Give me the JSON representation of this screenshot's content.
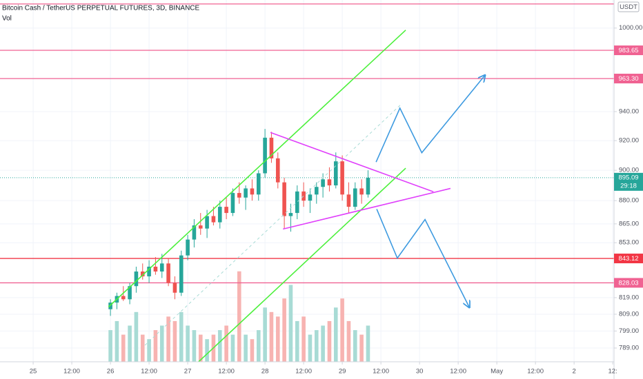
{
  "chart_data": {
    "type": "candlestick",
    "title": "Bitcoin Cash / TetherUS PERPETUAL FUTURES, 3D, BINANCE",
    "volume_label": "Vol",
    "currency": "USDT",
    "colors": {
      "up": "#26a69a",
      "down": "#ef5350",
      "volume_up": "#a8dbd5",
      "volume_down": "#f7b3b1"
    },
    "x": [
      24,
      26,
      28,
      30,
      32,
      34,
      36,
      38,
      40,
      42,
      44,
      46,
      48,
      50,
      52,
      54,
      56,
      58,
      60,
      62,
      64,
      66,
      68,
      70,
      72,
      74,
      76,
      78,
      80,
      82,
      84,
      86,
      88,
      90,
      92,
      94,
      96,
      98,
      100,
      102,
      104
    ],
    "open": [
      812,
      816,
      820,
      818,
      826,
      835,
      832,
      838,
      835,
      840,
      828,
      822,
      845,
      855,
      864,
      862,
      870,
      866,
      876,
      872,
      885,
      882,
      888,
      884,
      898,
      922,
      908,
      892,
      870,
      872,
      886,
      880,
      884,
      889,
      894,
      890,
      906,
      884,
      876,
      888,
      884
    ],
    "high": [
      818,
      822,
      826,
      828,
      838,
      840,
      842,
      844,
      846,
      843,
      832,
      848,
      858,
      868,
      872,
      874,
      876,
      880,
      882,
      888,
      892,
      890,
      894,
      900,
      928,
      926,
      912,
      895,
      878,
      890,
      892,
      888,
      892,
      898,
      902,
      912,
      910,
      892,
      892,
      894,
      900
    ],
    "low": [
      808,
      812,
      817,
      815,
      822,
      830,
      828,
      833,
      831,
      826,
      818,
      820,
      842,
      850,
      858,
      856,
      864,
      862,
      868,
      870,
      878,
      874,
      880,
      880,
      895,
      905,
      888,
      862,
      860,
      868,
      876,
      872,
      878,
      882,
      886,
      888,
      880,
      872,
      874,
      878,
      882
    ],
    "close": [
      816,
      820,
      818,
      826,
      835,
      832,
      838,
      835,
      840,
      828,
      822,
      845,
      855,
      864,
      862,
      870,
      866,
      876,
      872,
      885,
      882,
      888,
      884,
      898,
      922,
      908,
      892,
      870,
      872,
      886,
      880,
      884,
      889,
      894,
      890,
      906,
      884,
      876,
      888,
      884,
      895
    ],
    "volume": [
      35,
      45,
      30,
      40,
      55,
      30,
      25,
      35,
      40,
      50,
      45,
      55,
      40,
      35,
      30,
      25,
      30,
      35,
      40,
      30,
      100,
      30,
      25,
      35,
      60,
      55,
      50,
      70,
      85,
      45,
      50,
      30,
      35,
      40,
      45,
      60,
      70,
      45,
      35,
      30,
      40
    ],
    "y2lim": [
      0,
      400
    ],
    "xlim": [
      -10.3,
      180.4
    ],
    "xticks": [
      {
        "value": 0,
        "label": "25"
      },
      {
        "value": 12,
        "label": "12:00"
      },
      {
        "value": 24,
        "label": "26"
      },
      {
        "value": 36,
        "label": "12:00"
      },
      {
        "value": 48,
        "label": "27"
      },
      {
        "value": 60,
        "label": "12:00"
      },
      {
        "value": 72,
        "label": "28"
      },
      {
        "value": 84,
        "label": "12:00"
      },
      {
        "value": 96,
        "label": "29"
      },
      {
        "value": 108,
        "label": "12:00"
      },
      {
        "value": 120,
        "label": "30"
      },
      {
        "value": 132,
        "label": "12:00"
      },
      {
        "value": 144,
        "label": "May"
      },
      {
        "value": 156,
        "label": "12:00"
      },
      {
        "value": 168,
        "label": "2"
      },
      {
        "value": 180,
        "label": "12:"
      }
    ],
    "log_scale": true,
    "ylim": [
      781,
      1021
    ],
    "yticks": [
      {
        "value": 1000,
        "label": "1000.00"
      },
      {
        "value": 940,
        "label": "940.00"
      },
      {
        "value": 920,
        "label": "920.00"
      },
      {
        "value": 900,
        "label": "900.00"
      },
      {
        "value": 880,
        "label": "880.00"
      },
      {
        "value": 865,
        "label": "865.00"
      },
      {
        "value": 853,
        "label": "853.00"
      },
      {
        "value": 819,
        "label": "819.00"
      },
      {
        "value": 809,
        "label": "809.00"
      },
      {
        "value": 799,
        "label": "799.00"
      },
      {
        "value": 789,
        "label": "789.00"
      }
    ],
    "grid": true,
    "levels": [
      {
        "price": 1018,
        "color": "#f06292"
      },
      {
        "price": 983.65,
        "color": "#f06292"
      },
      {
        "price": 963.3,
        "label": "963.30",
        "color": "#f06292"
      },
      {
        "price": 843.12,
        "color": "#f23645"
      },
      {
        "price": 828.03,
        "color": "#f06292"
      }
    ],
    "current": {
      "price": 895.09,
      "countdown": "29:18",
      "color": "#26a69a"
    },
    "drawings": [
      {
        "color": "#4cf03c",
        "points": [
          [
            23.4,
            813.4
          ],
          [
            115.7,
            998.5
          ]
        ]
      },
      {
        "color": "#4cf03c",
        "points": [
          [
            50.8,
            780
          ],
          [
            115.7,
            901.4
          ]
        ]
      },
      {
        "color": "#a8dbd5",
        "dashed": true,
        "points": [
          [
            34.7,
            790.6
          ],
          [
            114.6,
            945.8
          ]
        ]
      },
      {
        "color": "#e040fb",
        "points": [
          [
            73.7,
            925.6
          ],
          [
            124.3,
            885.8
          ]
        ]
      },
      {
        "color": "#e040fb",
        "points": [
          [
            77.6,
            861.7
          ],
          [
            129.6,
            888
          ]
        ]
      },
      {
        "color": "#3d9ae0",
        "arrow": true,
        "points": [
          [
            106.5,
            905.5
          ],
          [
            113.9,
            942.4
          ],
          [
            120.7,
            911.8
          ],
          [
            140.2,
            965.3
          ]
        ]
      },
      {
        "color": "#3d9ae0",
        "arrow": true,
        "points": [
          [
            106.7,
            874.5
          ],
          [
            113.1,
            843.3
          ],
          [
            121.7,
            867.8
          ],
          [
            135.4,
            813.4
          ]
        ]
      }
    ]
  }
}
